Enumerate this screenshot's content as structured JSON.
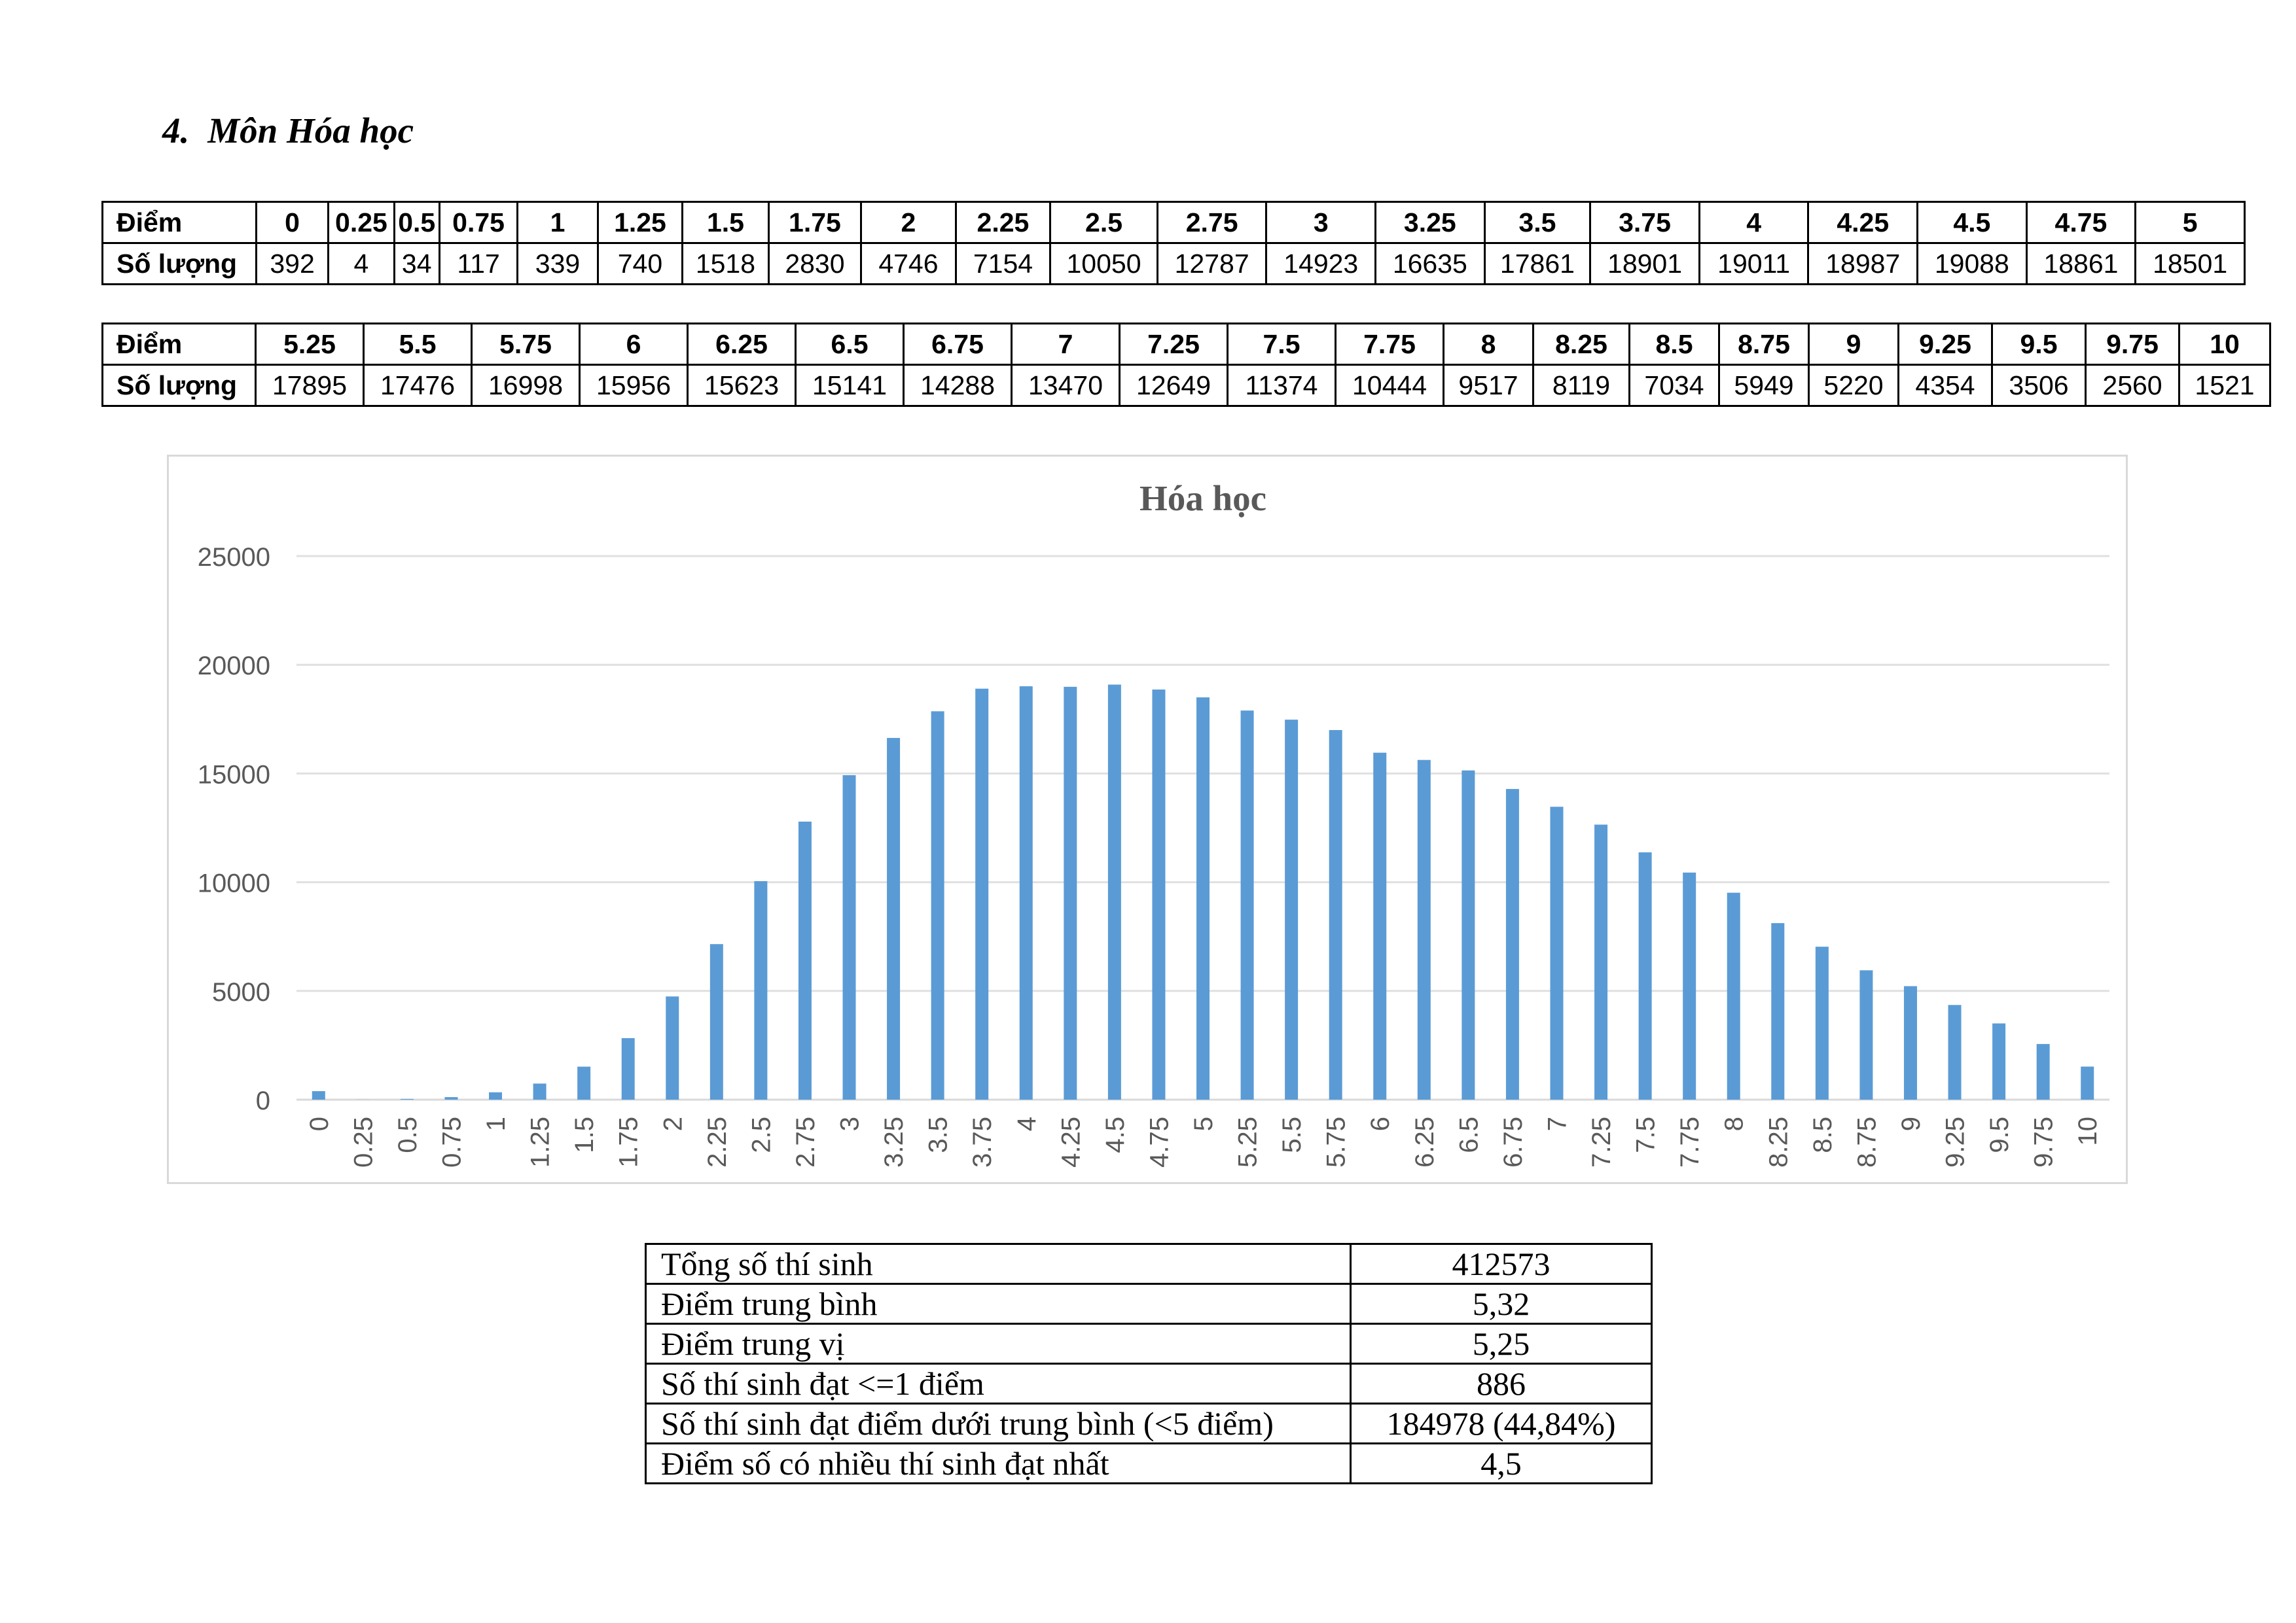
{
  "heading": {
    "number": "4.",
    "title": "Môn Hóa học"
  },
  "score_table": {
    "row_labels": {
      "score": "Điểm",
      "count": "Số lượng"
    },
    "part1": {
      "scores": [
        "0",
        "0.25",
        "0.5",
        "0.75",
        "1",
        "1.25",
        "1.5",
        "1.75",
        "2",
        "2.25",
        "2.5",
        "2.75",
        "3",
        "3.25",
        "3.5",
        "3.75",
        "4",
        "4.25",
        "4.5",
        "4.75",
        "5"
      ],
      "counts": [
        "392",
        "4",
        "34",
        "117",
        "339",
        "740",
        "1518",
        "2830",
        "4746",
        "7154",
        "10050",
        "12787",
        "14923",
        "16635",
        "17861",
        "18901",
        "19011",
        "18987",
        "19088",
        "18861",
        "18501"
      ]
    },
    "part2": {
      "scores": [
        "5.25",
        "5.5",
        "5.75",
        "6",
        "6.25",
        "6.5",
        "6.75",
        "7",
        "7.25",
        "7.5",
        "7.75",
        "8",
        "8.25",
        "8.5",
        "8.75",
        "9",
        "9.25",
        "9.5",
        "9.75",
        "10"
      ],
      "counts": [
        "17895",
        "17476",
        "16998",
        "15956",
        "15623",
        "15141",
        "14288",
        "13470",
        "12649",
        "11374",
        "10444",
        "9517",
        "8119",
        "7034",
        "5949",
        "5220",
        "4354",
        "3506",
        "2560",
        "1521"
      ]
    }
  },
  "chart_data": {
    "type": "bar",
    "title": "Hóa học",
    "xlabel": "",
    "ylabel": "",
    "ylim": [
      0,
      25000
    ],
    "yticks": [
      0,
      5000,
      10000,
      15000,
      20000,
      25000
    ],
    "grid": true,
    "legend": "none",
    "bar_color": "#5b9bd5",
    "categories": [
      "0",
      "0.25",
      "0.5",
      "0.75",
      "1",
      "1.25",
      "1.5",
      "1.75",
      "2",
      "2.25",
      "2.5",
      "2.75",
      "3",
      "3.25",
      "3.5",
      "3.75",
      "4",
      "4.25",
      "4.5",
      "4.75",
      "5",
      "5.25",
      "5.5",
      "5.75",
      "6",
      "6.25",
      "6.5",
      "6.75",
      "7",
      "7.25",
      "7.5",
      "7.75",
      "8",
      "8.25",
      "8.5",
      "8.75",
      "9",
      "9.25",
      "9.5",
      "9.75",
      "10"
    ],
    "values": [
      392,
      4,
      34,
      117,
      339,
      740,
      1518,
      2830,
      4746,
      7154,
      10050,
      12787,
      14923,
      16635,
      17861,
      18901,
      19011,
      18987,
      19088,
      18861,
      18501,
      17895,
      17476,
      16998,
      15956,
      15623,
      15141,
      14288,
      13470,
      12649,
      11374,
      10444,
      9517,
      8119,
      7034,
      5949,
      5220,
      4354,
      3506,
      2560,
      1521
    ]
  },
  "summary": [
    {
      "label": "Tổng số thí sinh",
      "value": "412573"
    },
    {
      "label": "Điểm trung bình",
      "value": "5,32"
    },
    {
      "label": "Điểm trung vị",
      "value": "5,25"
    },
    {
      "label": "Số thí sinh đạt <=1 điểm",
      "value": "886"
    },
    {
      "label": "Số thí sinh đạt điểm dưới trung bình (<5 điểm)",
      "value": "184978 (44,84%)"
    },
    {
      "label": "Điểm số có nhiều thí sinh đạt nhất",
      "value": "4,5"
    }
  ]
}
